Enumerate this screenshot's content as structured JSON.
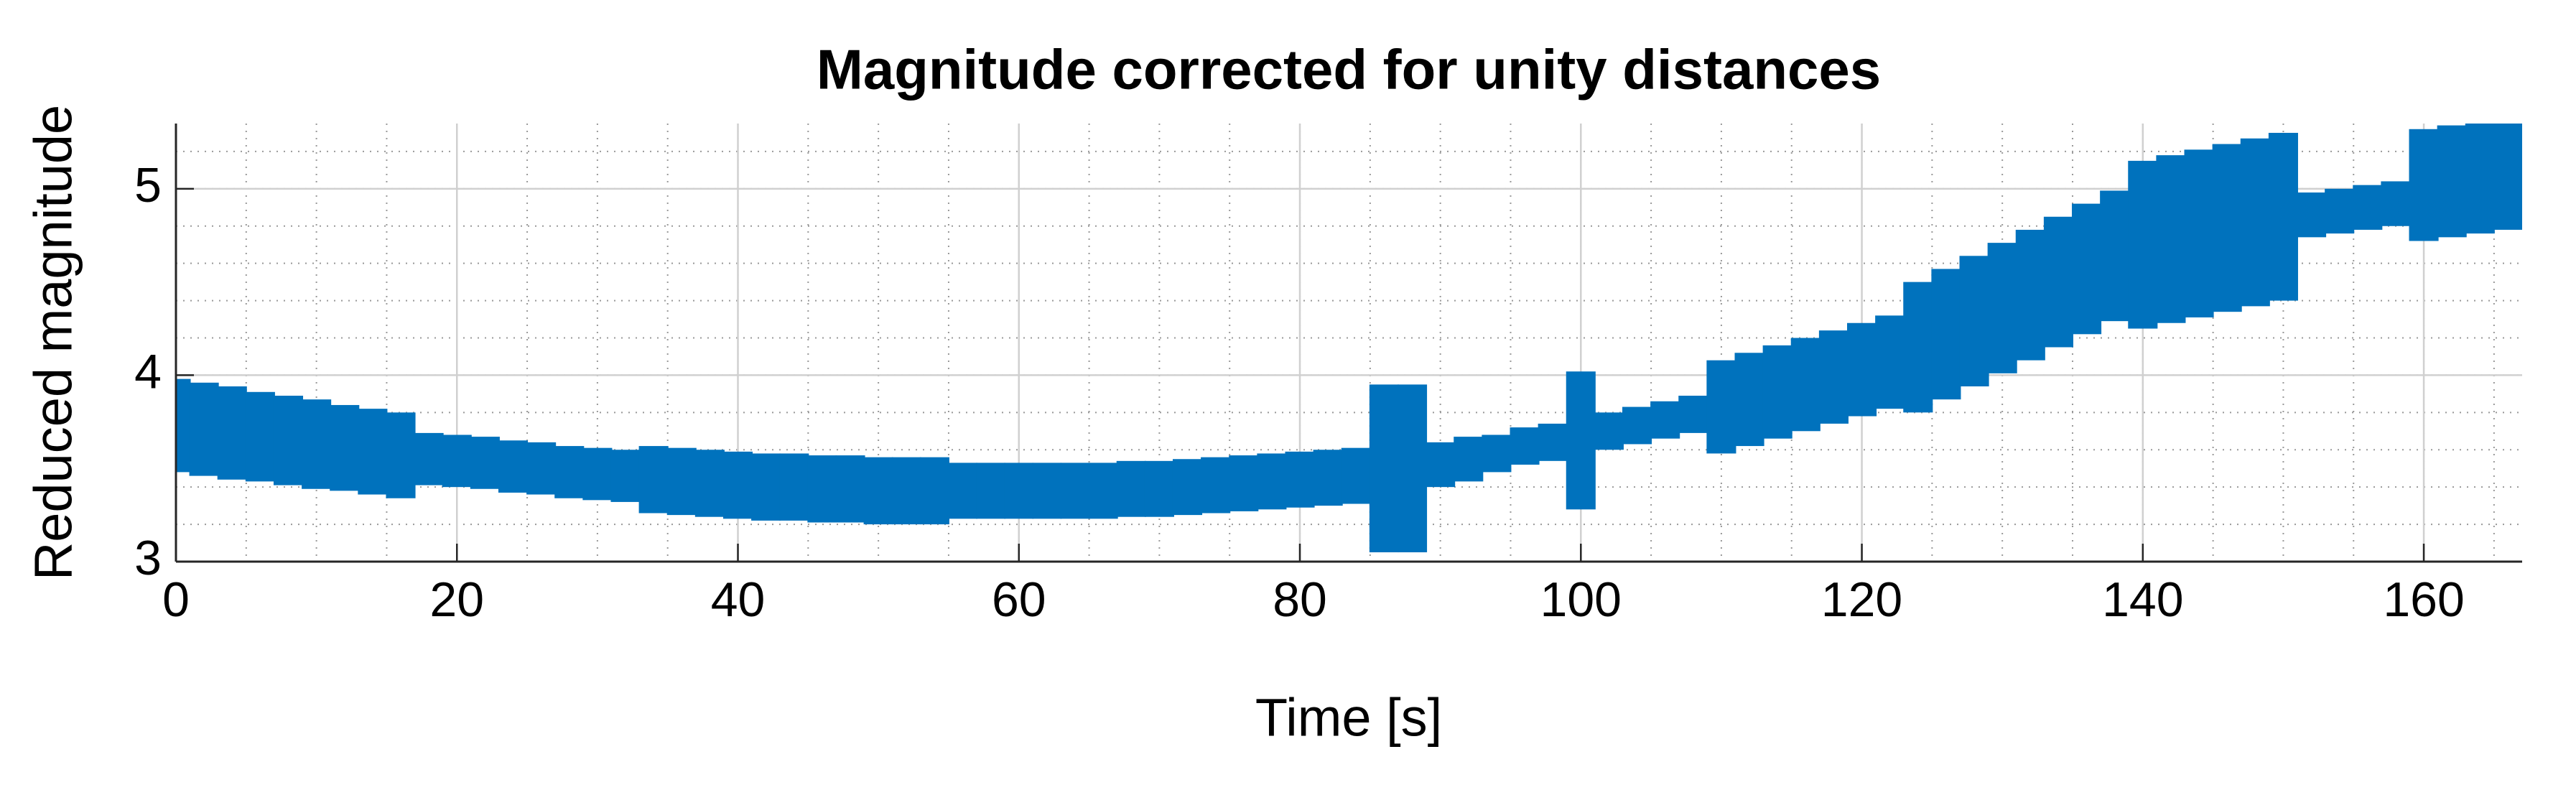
{
  "chart_data": {
    "type": "errorbar",
    "title": "Magnitude corrected for unity distances",
    "xlabel": "Time [s]",
    "ylabel": "Reduced magnitude",
    "x": [
      0,
      2,
      4,
      6,
      8,
      10,
      12,
      14,
      16,
      18,
      20,
      22,
      24,
      26,
      28,
      30,
      32,
      34,
      36,
      38,
      40,
      42,
      44,
      46,
      48,
      50,
      52,
      54,
      56,
      58,
      60,
      62,
      64,
      66,
      68,
      70,
      72,
      74,
      76,
      78,
      80,
      82,
      84,
      86,
      88,
      90,
      92,
      94,
      96,
      98,
      100,
      102,
      104,
      106,
      108,
      110,
      112,
      114,
      116,
      118,
      120,
      122,
      124,
      126,
      128,
      130,
      132,
      134,
      136,
      138,
      140,
      142,
      144,
      146,
      148,
      150,
      152,
      154,
      156,
      158,
      160,
      162,
      164,
      166
    ],
    "series": [
      {
        "color": "#0072bd",
        "values": [
          3.73,
          3.71,
          3.69,
          3.67,
          3.65,
          3.63,
          3.61,
          3.59,
          3.57,
          3.55,
          3.54,
          3.53,
          3.51,
          3.5,
          3.48,
          3.47,
          3.46,
          3.44,
          3.43,
          3.42,
          3.41,
          3.4,
          3.4,
          3.39,
          3.39,
          3.38,
          3.38,
          3.38,
          3.38,
          3.38,
          3.38,
          3.38,
          3.38,
          3.38,
          3.39,
          3.39,
          3.4,
          3.41,
          3.42,
          3.43,
          3.44,
          3.45,
          3.46,
          3.5,
          3.5,
          3.52,
          3.55,
          3.58,
          3.62,
          3.64,
          3.65,
          3.7,
          3.73,
          3.76,
          3.79,
          3.83,
          3.87,
          3.91,
          3.95,
          3.99,
          4.03,
          4.07,
          4.15,
          4.22,
          4.29,
          4.36,
          4.43,
          4.5,
          4.57,
          4.64,
          4.7,
          4.73,
          4.76,
          4.79,
          4.82,
          4.85,
          4.86,
          4.88,
          4.9,
          4.92,
          5.02,
          5.04,
          5.06,
          5.08
        ],
        "errors": [
          0.25,
          0.25,
          0.25,
          0.24,
          0.24,
          0.24,
          0.23,
          0.23,
          0.23,
          0.14,
          0.14,
          0.14,
          0.14,
          0.14,
          0.14,
          0.14,
          0.14,
          0.18,
          0.18,
          0.18,
          0.18,
          0.18,
          0.18,
          0.18,
          0.18,
          0.18,
          0.18,
          0.18,
          0.15,
          0.15,
          0.15,
          0.15,
          0.15,
          0.15,
          0.15,
          0.15,
          0.15,
          0.15,
          0.15,
          0.15,
          0.15,
          0.15,
          0.15,
          0.45,
          0.45,
          0.12,
          0.12,
          0.1,
          0.1,
          0.1,
          0.37,
          0.1,
          0.1,
          0.1,
          0.1,
          0.25,
          0.25,
          0.25,
          0.25,
          0.25,
          0.25,
          0.25,
          0.35,
          0.35,
          0.35,
          0.35,
          0.35,
          0.35,
          0.35,
          0.35,
          0.45,
          0.45,
          0.45,
          0.45,
          0.45,
          0.45,
          0.12,
          0.12,
          0.12,
          0.12,
          0.3,
          0.3,
          0.3,
          0.3
        ]
      }
    ],
    "xlim": [
      0,
      167
    ],
    "xticks": [
      0,
      20,
      40,
      60,
      80,
      100,
      120,
      140,
      160
    ],
    "ylim": [
      3,
      5.35
    ],
    "yticks": [
      3,
      4,
      5
    ],
    "grid": true,
    "minor_grid": true
  }
}
